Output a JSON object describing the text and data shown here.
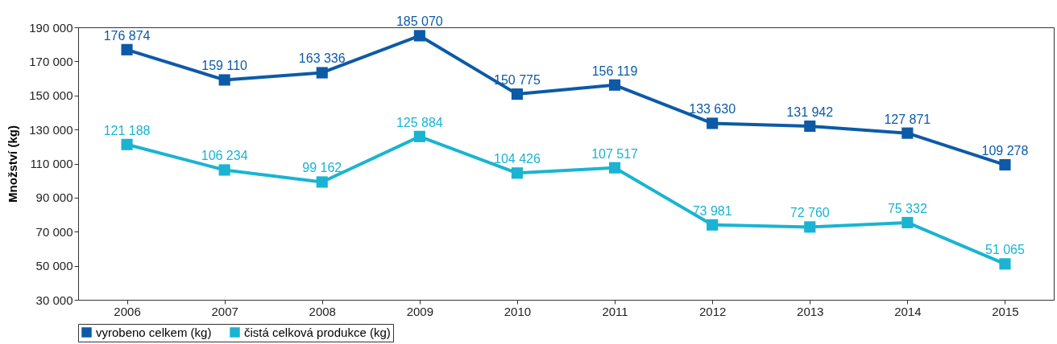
{
  "chart_data": {
    "type": "line",
    "ylabel": "Množství (kg)",
    "categories": [
      "2006",
      "2007",
      "2008",
      "2009",
      "2010",
      "2011",
      "2012",
      "2013",
      "2014",
      "2015"
    ],
    "series": [
      {
        "name": "vyrobeno celkem (kg)",
        "color": "#0d5aa7",
        "values": [
          176874,
          159110,
          163336,
          185070,
          150775,
          156119,
          133630,
          131942,
          127871,
          109278
        ],
        "value_labels": [
          "176 874",
          "159 110",
          "163 336",
          "185 070",
          "150 775",
          "156 119",
          "133 630",
          "131 942",
          "127 871",
          "109 278"
        ]
      },
      {
        "name": "čistá celková produkce (kg)",
        "color": "#1ab4d2",
        "values": [
          121188,
          106234,
          99162,
          125884,
          104426,
          107517,
          73981,
          72760,
          75332,
          51065
        ],
        "value_labels": [
          "121 188",
          "106 234",
          "99 162",
          "125 884",
          "104 426",
          "107 517",
          "73 981",
          "72 760",
          "75 332",
          "51 065"
        ]
      }
    ],
    "ylim": [
      30000,
      190000
    ],
    "yticks": [
      {
        "value": 30000,
        "label": "30 000"
      },
      {
        "value": 50000,
        "label": "50 000"
      },
      {
        "value": 70000,
        "label": "70 000"
      },
      {
        "value": 90000,
        "label": "90 000"
      },
      {
        "value": 110000,
        "label": "110 000"
      },
      {
        "value": 130000,
        "label": "130 000"
      },
      {
        "value": 150000,
        "label": "150 000"
      },
      {
        "value": 170000,
        "label": "170 000"
      },
      {
        "value": 190000,
        "label": "190 000"
      }
    ],
    "grid": false,
    "legend": "bottom",
    "marker": "square",
    "line_style": "solid"
  }
}
